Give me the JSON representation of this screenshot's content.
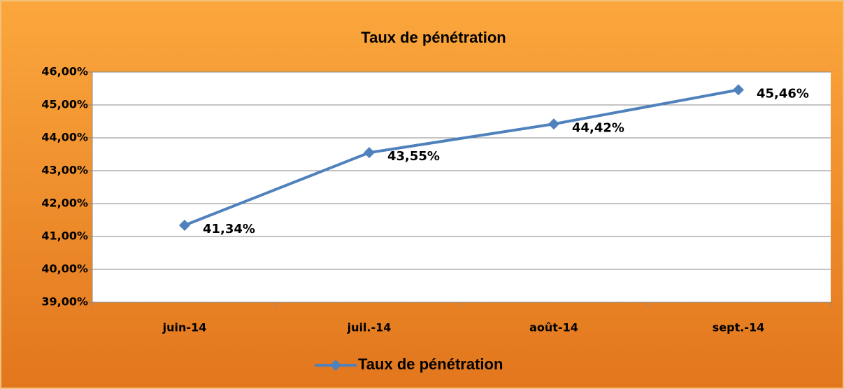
{
  "chart_data": {
    "type": "line",
    "title": "Taux de pénétration",
    "categories": [
      "juin-14",
      "juil.-14",
      "août-14",
      "sept.-14"
    ],
    "series": [
      {
        "name": "Taux de pénétration",
        "color": "#4f81bd",
        "values": [
          41.34,
          43.55,
          44.42,
          45.46
        ],
        "value_labels": [
          "41,34%",
          "43,55%",
          "44,42%",
          "45,46%"
        ]
      }
    ],
    "ylim": [
      39,
      46
    ],
    "yticks": [
      {
        "value": 39,
        "label": "39,00%"
      },
      {
        "value": 40,
        "label": "40,00%"
      },
      {
        "value": 41,
        "label": "41,00%"
      },
      {
        "value": 42,
        "label": "42,00%"
      },
      {
        "value": 43,
        "label": "43,00%"
      },
      {
        "value": 44,
        "label": "44,00%"
      },
      {
        "value": 45,
        "label": "45,00%"
      },
      {
        "value": 46,
        "label": "46,00%"
      }
    ],
    "grid": true,
    "legend": "bottom"
  }
}
